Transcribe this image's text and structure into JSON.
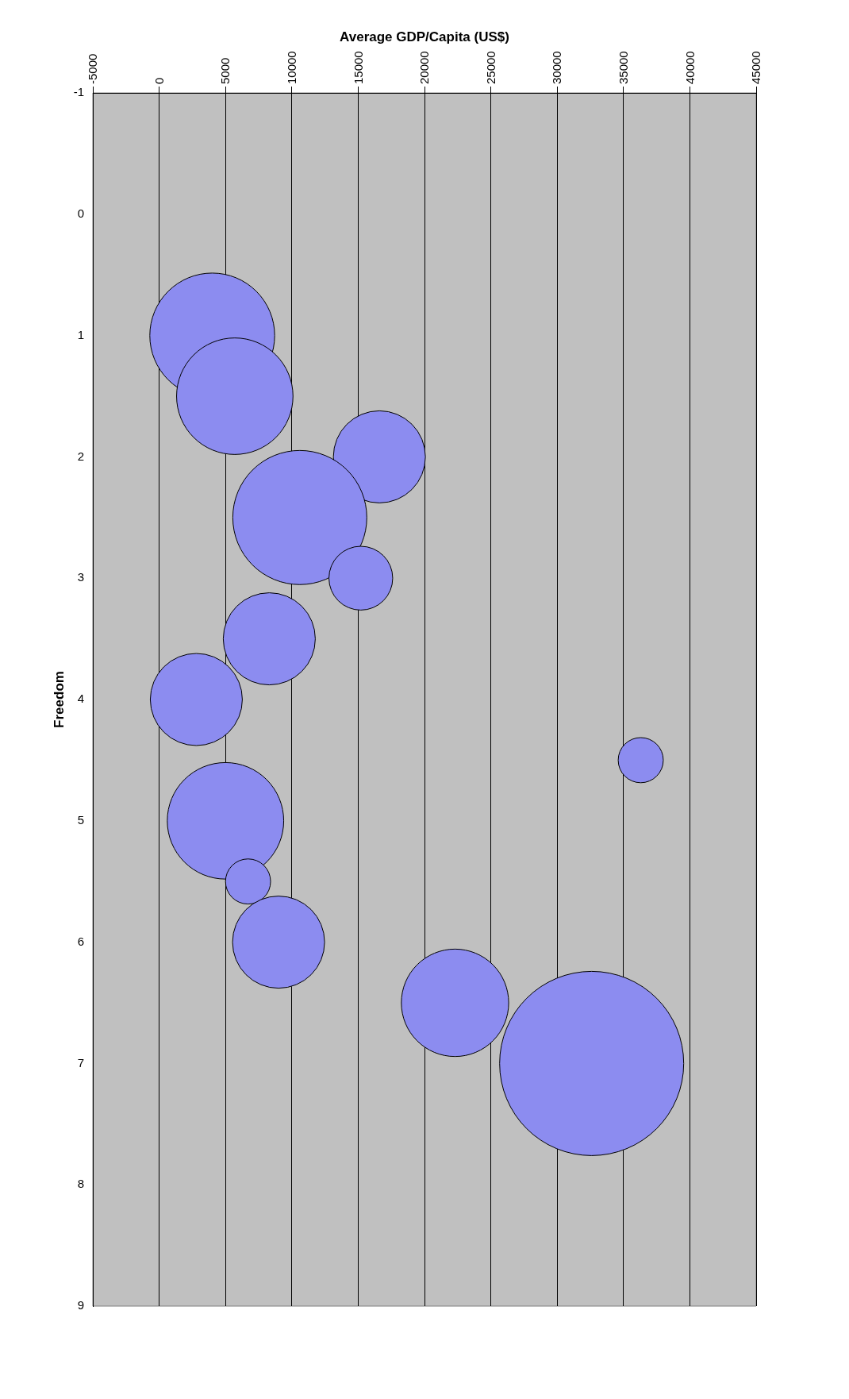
{
  "chart_data": {
    "type": "bubble",
    "xlabel": "Average GDP/Capita (US$)",
    "ylabel": "Freedom",
    "x": [
      4000,
      5700,
      16600,
      10600,
      15200,
      8300,
      2800,
      36300,
      5000,
      6700,
      9000,
      22300,
      32600
    ],
    "values": [
      1,
      1.5,
      2,
      2.5,
      3,
      3.5,
      4,
      4.5,
      5,
      5.5,
      6,
      6.5,
      7
    ],
    "sizes": [
      0.46,
      0.4,
      0.25,
      0.53,
      0.12,
      0.25,
      0.25,
      0.06,
      0.4,
      0.06,
      0.25,
      0.34,
      1
    ],
    "color": "#8c8cf0",
    "xlim": [
      -5000,
      45000
    ],
    "xticks": [
      -5000,
      0,
      5000,
      10000,
      15000,
      20000,
      25000,
      30000,
      35000,
      40000,
      45000
    ],
    "ylim": [
      9,
      -1
    ],
    "yticks": [
      -1,
      0,
      1,
      2,
      3,
      4,
      5,
      6,
      7,
      8,
      9
    ],
    "grid": "x",
    "legend": false
  }
}
